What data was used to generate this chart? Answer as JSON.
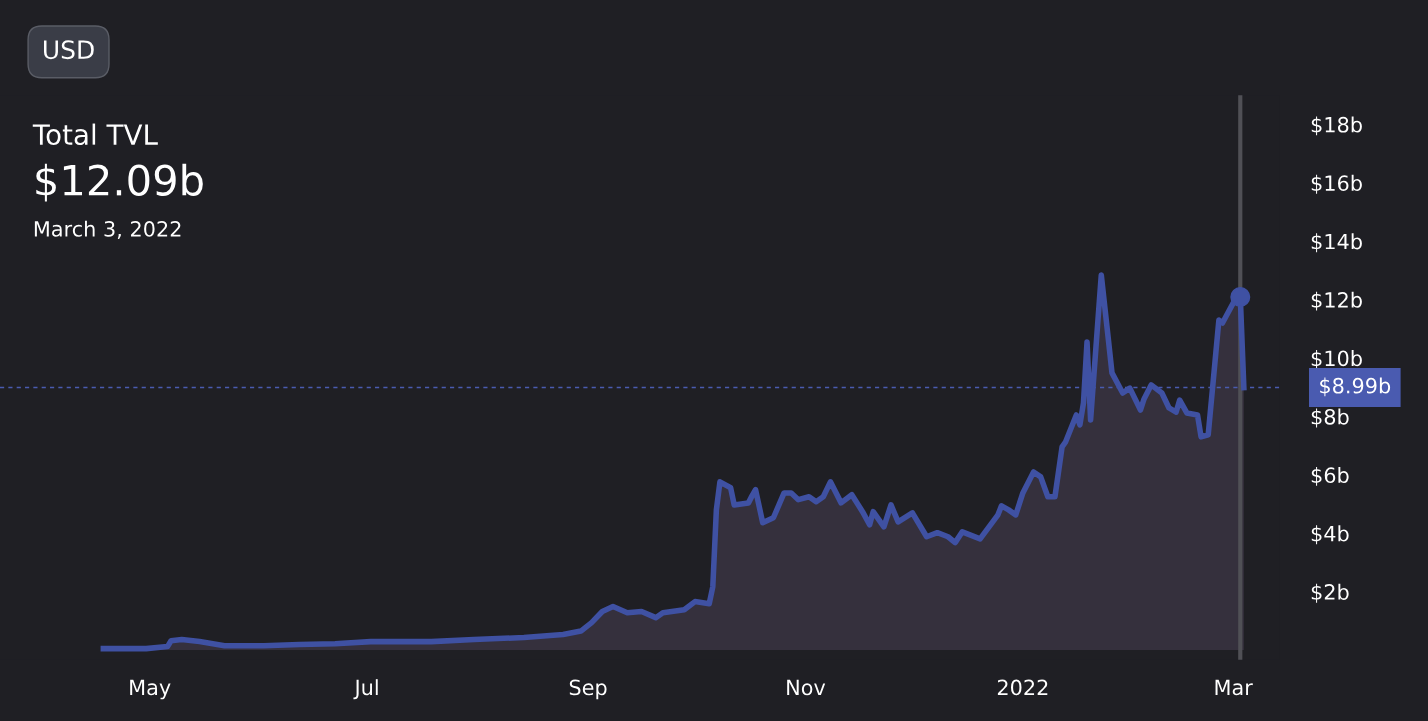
{
  "chart_data": {
    "type": "area",
    "title": "Total TVL",
    "subtitle": "$12.09b",
    "annotations": [
      "USD",
      "March 3, 2022"
    ],
    "x": [
      "2021-04-18",
      "2021-04-30",
      "2021-05-06",
      "2021-05-07",
      "2021-05-10",
      "2021-05-15",
      "2021-05-22",
      "2021-06-02",
      "2021-06-12",
      "2021-06-22",
      "2021-07-02",
      "2021-07-19",
      "2021-07-31",
      "2021-08-14",
      "2021-08-25",
      "2021-08-30",
      "2021-09-02",
      "2021-09-05",
      "2021-09-08",
      "2021-09-12",
      "2021-09-16",
      "2021-09-20",
      "2021-09-22",
      "2021-09-28",
      "2021-10-01",
      "2021-10-05",
      "2021-10-06",
      "2021-10-07",
      "2021-10-08",
      "2021-10-11",
      "2021-10-12",
      "2021-10-16",
      "2021-10-17",
      "2021-10-18",
      "2021-10-20",
      "2021-10-23",
      "2021-10-26",
      "2021-10-28",
      "2021-10-30",
      "2021-11-02",
      "2021-11-04",
      "2021-11-06",
      "2021-11-08",
      "2021-11-11",
      "2021-11-14",
      "2021-11-17",
      "2021-11-19",
      "2021-11-20",
      "2021-11-23",
      "2021-11-25",
      "2021-11-27",
      "2021-12-01",
      "2021-12-05",
      "2021-12-08",
      "2021-12-11",
      "2021-12-13",
      "2021-12-15",
      "2021-12-20",
      "2021-12-25",
      "2021-12-26",
      "2021-12-28",
      "2021-12-30",
      "2022-01-01",
      "2022-01-04",
      "2022-01-06",
      "2022-01-08",
      "2022-01-10",
      "2022-01-12",
      "2022-01-13",
      "2022-01-16",
      "2022-01-17",
      "2022-01-18",
      "2022-01-19",
      "2022-01-20",
      "2022-01-23",
      "2022-01-25",
      "2022-01-26",
      "2022-01-29",
      "2022-01-31",
      "2022-02-03",
      "2022-02-04",
      "2022-02-06",
      "2022-02-09",
      "2022-02-11",
      "2022-02-13",
      "2022-02-14",
      "2022-02-16",
      "2022-02-19",
      "2022-02-20",
      "2022-02-22",
      "2022-02-25",
      "2022-02-26",
      "2022-03-01",
      "2022-03-03",
      "2022-03-04"
    ],
    "series": [
      {
        "color": "#3f51a3",
        "values": [
          0.05,
          0.05,
          0.12,
          0.32,
          0.36,
          0.29,
          0.15,
          0.15,
          0.19,
          0.22,
          0.29,
          0.29,
          0.36,
          0.43,
          0.53,
          0.65,
          0.94,
          1.32,
          1.49,
          1.28,
          1.32,
          1.11,
          1.28,
          1.38,
          1.66,
          1.59,
          2.17,
          4.8,
          5.76,
          5.56,
          4.97,
          5.04,
          5.28,
          5.49,
          4.36,
          4.53,
          5.38,
          5.38,
          5.15,
          5.25,
          5.08,
          5.25,
          5.76,
          5.04,
          5.32,
          4.74,
          4.29,
          4.74,
          4.22,
          4.97,
          4.39,
          4.7,
          3.88,
          4.02,
          3.88,
          3.68,
          4.05,
          3.81,
          4.63,
          4.94,
          4.8,
          4.63,
          5.38,
          6.1,
          5.93,
          5.25,
          5.25,
          6.96,
          7.13,
          8.05,
          7.71,
          8.46,
          10.55,
          7.88,
          12.84,
          10.62,
          9.49,
          8.8,
          8.97,
          8.22,
          8.6,
          9.08,
          8.8,
          8.29,
          8.15,
          8.56,
          8.12,
          8.05,
          7.3,
          7.37,
          11.3,
          11.2,
          11.88,
          12.09,
          8.99
        ]
      },
      {
        "type": "scatter",
        "color": "#3f51a3",
        "marker": "circle",
        "x": [
          "2022-03-03"
        ],
        "values": [
          12.09
        ]
      }
    ],
    "xlim": [
      "2021-03-20",
      "2022-03-14"
    ],
    "xticks": [
      {
        "value": "2021-05-01",
        "label": "May"
      },
      {
        "value": "2021-07-01",
        "label": "Jul"
      },
      {
        "value": "2021-09-01",
        "label": "Sep"
      },
      {
        "value": "2021-11-01",
        "label": "Nov"
      },
      {
        "value": "2022-01-01",
        "label": "2022"
      },
      {
        "value": "2022-03-01",
        "label": "Mar"
      }
    ],
    "ylim": [
      -0.33,
      19
    ],
    "yticks": [
      {
        "value": 2,
        "label": "$2b"
      },
      {
        "value": 4,
        "label": "$4b"
      },
      {
        "value": 6,
        "label": "$6b"
      },
      {
        "value": 8,
        "label": "$8b"
      },
      {
        "value": 10,
        "label": "$10b"
      },
      {
        "value": 12,
        "label": "$12b"
      },
      {
        "value": 14,
        "label": "$14b"
      },
      {
        "value": 16,
        "label": "$16b"
      },
      {
        "value": 18,
        "label": "$18b"
      }
    ],
    "ref_lines": [
      {
        "axis": "y",
        "value": 8.99,
        "label": "$8.99b",
        "color": "#4a5bb0",
        "line_style": "dashed"
      },
      {
        "axis": "x",
        "value": "2022-03-03",
        "color": "#505056",
        "line_style": "solid"
      }
    ],
    "grid": false,
    "legend": false
  }
}
